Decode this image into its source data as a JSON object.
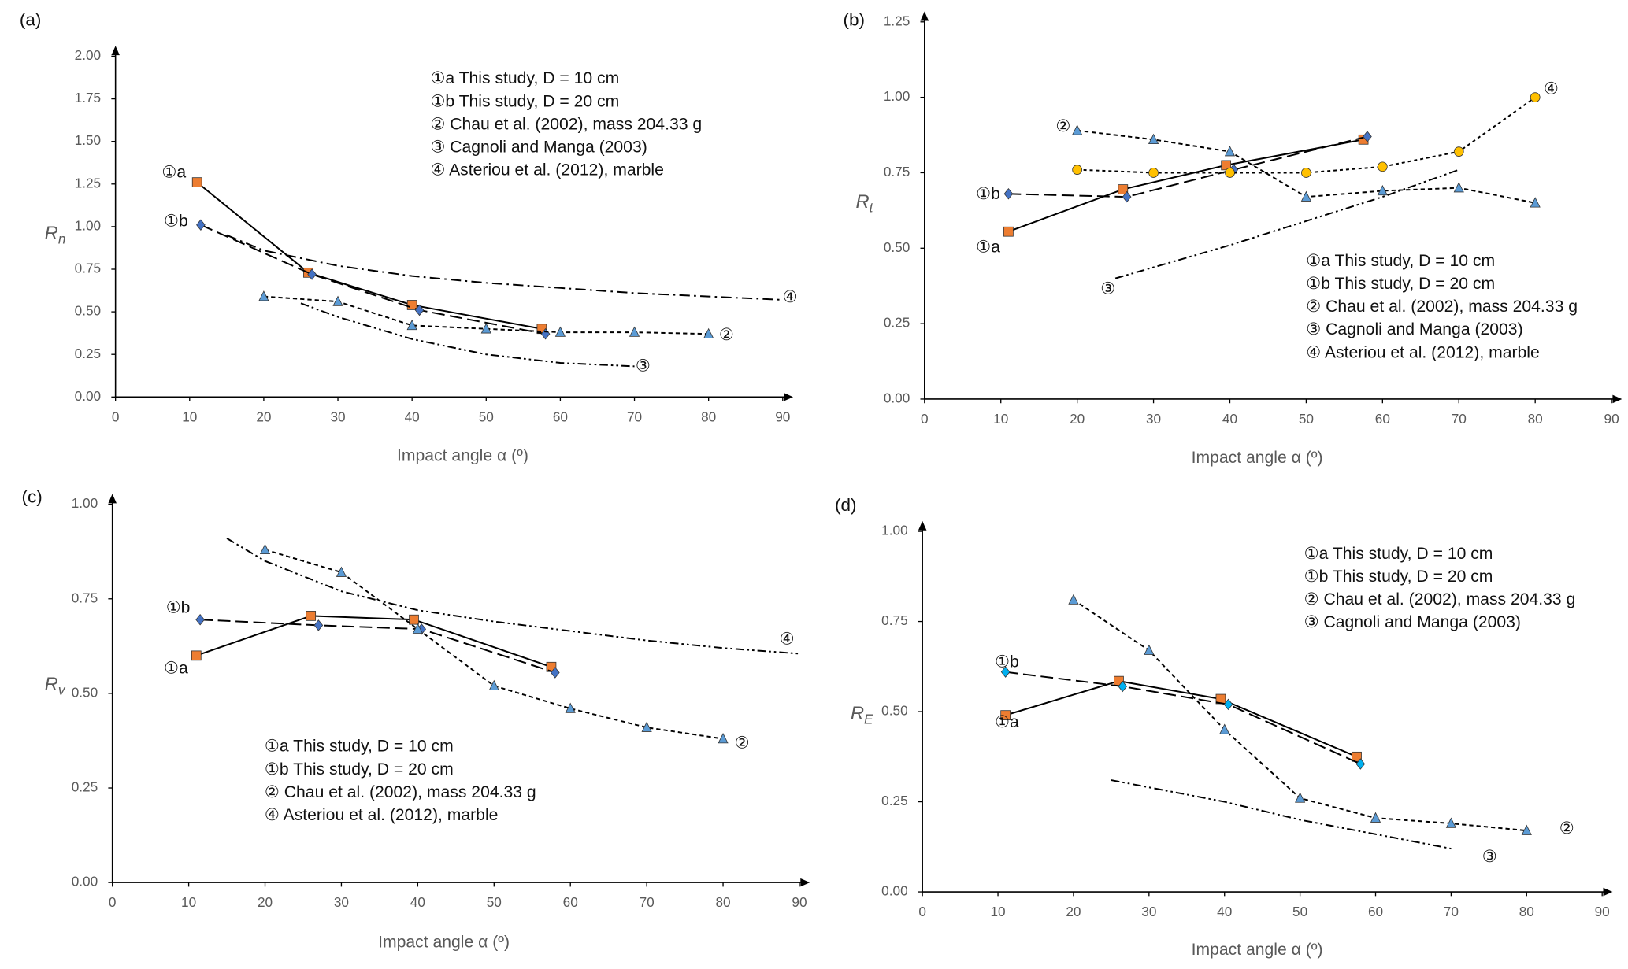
{
  "chart_data": [
    {
      "type": "line",
      "panel_label": "(a)",
      "ylabel": "R",
      "ylabel_subscript": "n",
      "xlabel": "Impact angle α (º)",
      "xlim": [
        0,
        90
      ],
      "xticks": [
        0,
        10,
        20,
        30,
        40,
        50,
        60,
        70,
        80,
        90
      ],
      "ylim": [
        0,
        2
      ],
      "yticks": [
        {
          "value": 0,
          "label": "0.00"
        },
        {
          "value": 0.25,
          "label": "0.25"
        },
        {
          "value": 0.5,
          "label": "0.50"
        },
        {
          "value": 0.75,
          "label": "0.75"
        },
        {
          "value": 1,
          "label": "1.00"
        },
        {
          "value": 1.25,
          "label": "1.25"
        },
        {
          "value": 1.5,
          "label": "1.50"
        },
        {
          "value": 1.75,
          "label": "1.75"
        },
        {
          "value": 2,
          "label": "2.00"
        }
      ],
      "series": [
        {
          "name": "①a This study, D = 10 cm",
          "label": "①a",
          "color": "#000000",
          "dash": "solid",
          "marker": "square",
          "marker_color": "#ed7d31",
          "x": [
            11,
            26,
            40,
            57.5
          ],
          "values": [
            1.26,
            0.73,
            0.54,
            0.4
          ]
        },
        {
          "name": "①b This study, D = 20 cm",
          "label": "①b",
          "color": "#000000",
          "dash": "long-dash",
          "marker": "diamond",
          "marker_color": "#4472c4",
          "x": [
            11.5,
            26.5,
            41,
            58
          ],
          "values": [
            1.01,
            0.72,
            0.51,
            0.37
          ]
        },
        {
          "name": "② Chau et al. (2002), mass 204.33 g",
          "label": "②",
          "color": "#000000",
          "dash": "dash",
          "marker": "triangle",
          "marker_color": "#5b9bd5",
          "x": [
            20,
            30,
            40,
            50,
            60,
            70,
            80
          ],
          "values": [
            0.59,
            0.56,
            0.42,
            0.4,
            0.38,
            0.38,
            0.37
          ]
        },
        {
          "name": "③ Cagnoli and Manga (2003)",
          "label": "③",
          "color": "#000000",
          "dash": "dash-dot-dot",
          "x": [
            25,
            30,
            40,
            50,
            60,
            70
          ],
          "values": [
            0.55,
            0.47,
            0.34,
            0.25,
            0.2,
            0.18
          ]
        },
        {
          "name": "④ Asteriou et al. (2012), marble",
          "label": "④",
          "color": "#000000",
          "dash": "dash-dot",
          "x": [
            15,
            20,
            30,
            40,
            50,
            60,
            70,
            80,
            90
          ],
          "values": [
            0.95,
            0.86,
            0.77,
            0.71,
            0.67,
            0.64,
            0.61,
            0.59,
            0.57
          ]
        }
      ]
    },
    {
      "type": "line",
      "panel_label": "(b)",
      "ylabel": "R",
      "ylabel_subscript": "t",
      "xlabel": "Impact angle α (º)",
      "xlim": [
        0,
        90
      ],
      "xticks": [
        0,
        10,
        20,
        30,
        40,
        50,
        60,
        70,
        80,
        90
      ],
      "ylim": [
        0,
        1.25
      ],
      "yticks": [
        {
          "value": 0,
          "label": "0.00"
        },
        {
          "value": 0.25,
          "label": "0.25"
        },
        {
          "value": 0.5,
          "label": "0.50"
        },
        {
          "value": 0.75,
          "label": "0.75"
        },
        {
          "value": 1,
          "label": "1.00"
        },
        {
          "value": 1.25,
          "label": "1.25"
        }
      ],
      "series": [
        {
          "name": "①a This study, D = 10 cm",
          "label": "①a",
          "color": "#000000",
          "dash": "solid",
          "marker": "square",
          "marker_color": "#ed7d31",
          "x": [
            11,
            26,
            39.5,
            57.5
          ],
          "values": [
            0.555,
            0.695,
            0.775,
            0.86
          ]
        },
        {
          "name": "①b This study, D = 20 cm",
          "label": "①b",
          "color": "#000000",
          "dash": "long-dash",
          "marker": "diamond",
          "marker_color": "#4472c4",
          "x": [
            11,
            26.5,
            40.5,
            58
          ],
          "values": [
            0.68,
            0.67,
            0.76,
            0.87
          ]
        },
        {
          "name": "② Chau et al. (2002), mass 204.33 g",
          "label": "②",
          "color": "#000000",
          "dash": "dash",
          "marker": "triangle",
          "marker_color": "#5b9bd5",
          "x": [
            20,
            30,
            40,
            50,
            60,
            70,
            80
          ],
          "values": [
            0.89,
            0.86,
            0.82,
            0.67,
            0.69,
            0.7,
            0.65
          ]
        },
        {
          "name": "③ Cagnoli  and Manga (2003)",
          "label": "③",
          "color": "#000000",
          "dash": "dash-dot-dot",
          "x": [
            25,
            40,
            50,
            60,
            70
          ],
          "values": [
            0.4,
            0.51,
            0.59,
            0.67,
            0.76
          ]
        },
        {
          "name": "④ Asteriou et al. (2012), marble",
          "label": "④",
          "color": "#000000",
          "dash": "dot",
          "marker": "circle",
          "marker_color": "#ffc000",
          "x": [
            20,
            30,
            40,
            50,
            60,
            70,
            80
          ],
          "values": [
            0.76,
            0.75,
            0.75,
            0.75,
            0.77,
            0.82,
            1.0
          ]
        }
      ]
    },
    {
      "type": "line",
      "panel_label": "(c)",
      "ylabel": "R",
      "ylabel_subscript": "v",
      "xlabel": "Impact angle α (º)",
      "xlim": [
        0,
        90
      ],
      "xticks": [
        0,
        10,
        20,
        30,
        40,
        50,
        60,
        70,
        80,
        90
      ],
      "ylim": [
        0,
        1
      ],
      "yticks": [
        {
          "value": 0,
          "label": "0.00"
        },
        {
          "value": 0.25,
          "label": "0.25"
        },
        {
          "value": 0.5,
          "label": "0.50"
        },
        {
          "value": 0.75,
          "label": "0.75"
        },
        {
          "value": 1,
          "label": "1.00"
        }
      ],
      "series": [
        {
          "name": "①a This study, D = 10 cm",
          "label": "①a",
          "color": "#000000",
          "dash": "solid",
          "marker": "square",
          "marker_color": "#ed7d31",
          "x": [
            11,
            26,
            39.5,
            57.5
          ],
          "values": [
            0.6,
            0.705,
            0.695,
            0.57
          ]
        },
        {
          "name": "①b This study, D = 20 cm",
          "label": "①b",
          "color": "#000000",
          "dash": "long-dash",
          "marker": "diamond",
          "marker_color": "#4472c4",
          "x": [
            11.5,
            27,
            40.5,
            58
          ],
          "values": [
            0.695,
            0.68,
            0.67,
            0.555
          ]
        },
        {
          "name": "② Chau et al. (2002), mass 204.33 g",
          "label": "②",
          "color": "#000000",
          "dash": "dash",
          "marker": "triangle",
          "marker_color": "#5b9bd5",
          "x": [
            20,
            30,
            40,
            50,
            60,
            70,
            80
          ],
          "values": [
            0.88,
            0.82,
            0.67,
            0.52,
            0.46,
            0.41,
            0.38
          ]
        },
        {
          "name": "④ Asteriou  et al. (2012), marble",
          "label": "④",
          "color": "#000000",
          "dash": "dash-dot-dot",
          "x": [
            15,
            20,
            30,
            40,
            50,
            60,
            70,
            80,
            90
          ],
          "values": [
            0.91,
            0.85,
            0.77,
            0.72,
            0.69,
            0.665,
            0.64,
            0.62,
            0.605
          ]
        }
      ]
    },
    {
      "type": "line",
      "panel_label": "(d)",
      "ylabel": "R",
      "ylabel_subscript": "E",
      "xlabel": "Impact angle α (º)",
      "xlim": [
        0,
        90
      ],
      "xticks": [
        0,
        10,
        20,
        30,
        40,
        50,
        60,
        70,
        80,
        90
      ],
      "ylim": [
        0,
        1
      ],
      "yticks": [
        {
          "value": 0,
          "label": "0.00"
        },
        {
          "value": 0.25,
          "label": "0.25"
        },
        {
          "value": 0.5,
          "label": "0.50"
        },
        {
          "value": 0.75,
          "label": "0.75"
        },
        {
          "value": 1,
          "label": "1.00"
        }
      ],
      "series": [
        {
          "name": "①a This study, D = 10 cm",
          "label": "①a",
          "color": "#000000",
          "dash": "solid",
          "marker": "square",
          "marker_color": "#ed7d31",
          "x": [
            11,
            26,
            39.5,
            57.5
          ],
          "values": [
            0.49,
            0.585,
            0.535,
            0.375
          ]
        },
        {
          "name": "①b This study, D = 20 cm",
          "label": "①b",
          "color": "#000000",
          "dash": "long-dash",
          "marker": "diamond",
          "marker_color": "#00b0f0",
          "x": [
            11,
            26.5,
            40.5,
            58
          ],
          "values": [
            0.61,
            0.57,
            0.52,
            0.355
          ]
        },
        {
          "name": "② Chau et al. (2002), mass 204.33 g",
          "label": "②",
          "color": "#000000",
          "dash": "dash",
          "marker": "triangle",
          "marker_color": "#5b9bd5",
          "x": [
            20,
            30,
            40,
            50,
            60,
            70,
            80
          ],
          "values": [
            0.81,
            0.67,
            0.45,
            0.26,
            0.205,
            0.19,
            0.17
          ]
        },
        {
          "name": "③ Cagnoli  and Manga (2003)",
          "label": "③",
          "color": "#000000",
          "dash": "dash-dot-dot",
          "x": [
            25,
            40,
            50,
            60,
            70
          ],
          "values": [
            0.31,
            0.25,
            0.2,
            0.16,
            0.12
          ]
        }
      ]
    }
  ]
}
